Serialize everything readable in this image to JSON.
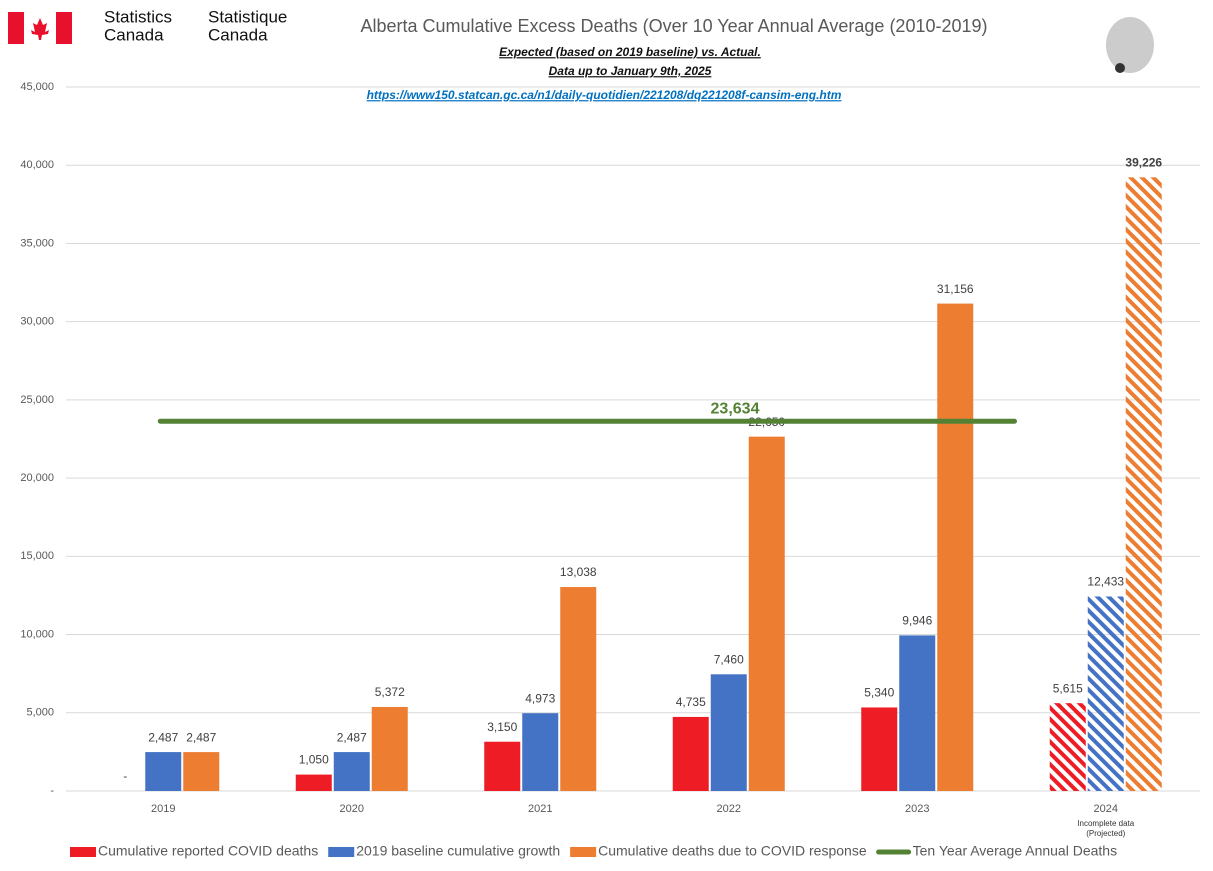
{
  "chart_data": {
    "type": "bar",
    "header": {
      "org_en": [
        "Statistics",
        "Canada"
      ],
      "org_fr": [
        "Statistique",
        "Canada"
      ]
    },
    "title": "Alberta Cumulative Excess Deaths (Over 10 Year Annual Average (2010-2019)",
    "subtitle": [
      "Expected (based on 2019 baseline) vs. Actual.",
      "Data up to January 9th, 2025"
    ],
    "source_url": "https://www150.statcan.gc.ca/n1/daily-quotidien/221208/dq221208f-cansim-eng.htm",
    "categories": [
      "2019",
      "2020",
      "2021",
      "2022",
      "2023",
      "2024"
    ],
    "category_note": [
      "Incomplete data",
      "(Projected)"
    ],
    "series": [
      {
        "name": "Cumulative reported COVID deaths",
        "color": "#ee1c25",
        "values": [
          0,
          1050,
          3150,
          4735,
          5340,
          5615
        ],
        "value_labels": [
          "-",
          "1,050",
          "3,150",
          "4,735",
          "5,340",
          "5,615"
        ]
      },
      {
        "name": "2019 baseline cumulative growth",
        "color": "#4472c4",
        "values": [
          2487,
          2487,
          4973,
          7460,
          9946,
          12433
        ],
        "value_labels": [
          "2,487",
          "2,487",
          "4,973",
          "7,460",
          "9,946",
          "12,433"
        ]
      },
      {
        "name": "Cumulative deaths due to COVID response",
        "color": "#ed7d31",
        "values": [
          2487,
          5372,
          13038,
          22650,
          31156,
          39226
        ],
        "value_labels": [
          "2,487",
          "5,372",
          "13,038",
          "22,650",
          "31,156",
          "39,226"
        ]
      }
    ],
    "average": {
      "name": "Ten Year Average Annual Deaths",
      "color": "#548235",
      "value": 23634,
      "label": "23,634"
    },
    "ylim": [
      0,
      45000
    ],
    "yticks": [
      {
        "value": 0,
        "label": "-"
      },
      {
        "value": 5000,
        "label": "5,000"
      },
      {
        "value": 10000,
        "label": "10,000"
      },
      {
        "value": 15000,
        "label": "15,000"
      },
      {
        "value": 20000,
        "label": "20,000"
      },
      {
        "value": 25000,
        "label": "25,000"
      },
      {
        "value": 30000,
        "label": "30,000"
      },
      {
        "value": 35000,
        "label": "35,000"
      },
      {
        "value": 40000,
        "label": "40,000"
      },
      {
        "value": 45000,
        "label": "45,000"
      }
    ],
    "grid": true
  }
}
